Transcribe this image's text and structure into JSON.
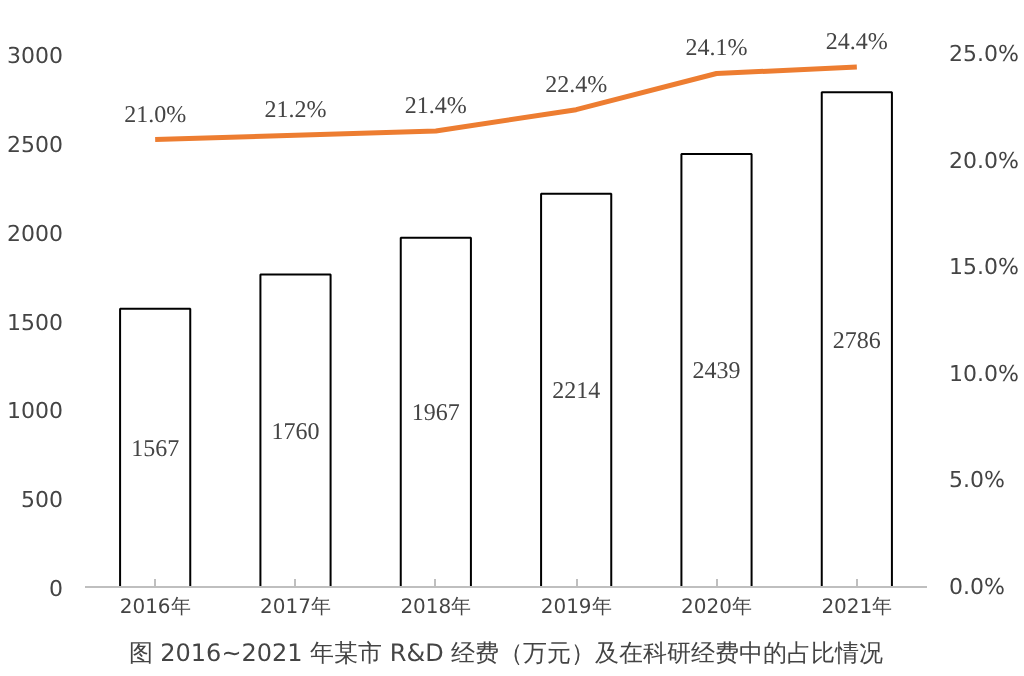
{
  "chart_data": {
    "type": "bar",
    "categories": [
      "2016年",
      "2017年",
      "2018年",
      "2019年",
      "2020年",
      "2021年"
    ],
    "series": [
      {
        "color": "#ffffff",
        "values": [
          1567,
          1760,
          1967,
          2214,
          2439,
          2786
        ]
      },
      {
        "type": "line",
        "axis": "y2",
        "color": "#ed7d31",
        "values": [
          21.0,
          21.2,
          21.4,
          22.4,
          24.1,
          24.4
        ],
        "value_labels": [
          "21.0%",
          "21.2%",
          "21.4%",
          "22.4%",
          "24.1%",
          "24.4%"
        ]
      }
    ],
    "ylim": [
      0,
      3000
    ],
    "yticks": [
      0,
      500,
      1000,
      1500,
      2000,
      2500,
      3000
    ],
    "y2lim": [
      0,
      25
    ],
    "y2ticks": [
      {
        "value": 0,
        "label": "0.0%"
      },
      {
        "value": 5,
        "label": "5.0%"
      },
      {
        "value": 10,
        "label": "10.0%"
      },
      {
        "value": 15,
        "label": "15.0%"
      },
      {
        "value": 20,
        "label": "20.0%"
      },
      {
        "value": 25,
        "label": "25.0%"
      }
    ],
    "data_labels": true,
    "grid": false,
    "annotations": [
      "图 2016~2021 年某市 R&D 经费（万元）及在科研经费中的占比情况"
    ]
  }
}
